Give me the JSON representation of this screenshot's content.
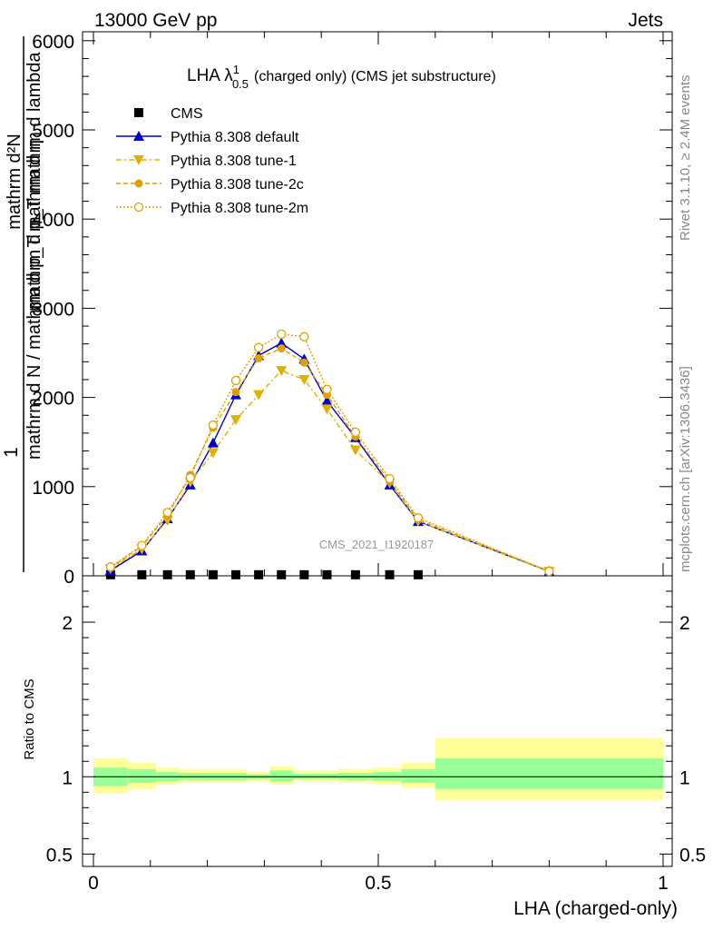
{
  "header": {
    "left": "13000 GeV pp",
    "right": "Jets"
  },
  "side_labels": {
    "rivet": "Rivet 3.1.10, ≥ 2.4M events",
    "mcplots": "mcplots.cern.ch [arXiv:1306.3436]"
  },
  "chart_data": {
    "type": "line",
    "title": "LHA λ^1_0.5 (charged only) (CMS jet substructure)",
    "title_main": "LHA λ",
    "title_sup": "1",
    "title_sub": "0.5",
    "title_rest": "(charged only) (CMS jet substructure)",
    "watermark": "CMS_2021_I1920187",
    "ylabel_left": "mathrm d N / mathrm d p_T mathrm d η",
    "ylabel_left_top": "1",
    "ylabel_main": "mathrm d^2N / mathrm d p_T mathrm d lambda",
    "ylabel_main_num": "mathrm d²N",
    "ylabel_main_den": "mathrm d p_T mathrm d lambda",
    "xlabel": "LHA (charged-only)",
    "ratio_ylabel": "Ratio to CMS",
    "xlim": [
      0,
      1
    ],
    "ylim": [
      0,
      6100
    ],
    "ratio_ylim": [
      0.42,
      2.3
    ],
    "x_ticks": [
      "0",
      "0.5",
      "1"
    ],
    "y_ticks": [
      "0",
      "1000",
      "2000",
      "3000",
      "4000",
      "5000",
      "6000"
    ],
    "ratio_ticks": [
      "0.5",
      "1",
      "2"
    ],
    "legend_position": "top-left",
    "x": [
      0.03,
      0.085,
      0.13,
      0.17,
      0.21,
      0.25,
      0.29,
      0.33,
      0.37,
      0.41,
      0.46,
      0.52,
      0.57,
      0.8
    ],
    "series": [
      {
        "name": "CMS",
        "color": "#000000",
        "marker": "square",
        "values": [
          12,
          12,
          12,
          12,
          12,
          12,
          12,
          12,
          12,
          12,
          12,
          12,
          12,
          null
        ]
      },
      {
        "name": "Pythia 8.308 default",
        "color": "#0000cc",
        "marker": "triangle-up",
        "dash": "",
        "values": [
          60,
          280,
          640,
          1020,
          1490,
          2030,
          2470,
          2610,
          2430,
          1960,
          1550,
          1020,
          610,
          50
        ]
      },
      {
        "name": "Pythia 8.308 tune-1",
        "color": "#e0b000",
        "marker": "triangle-down",
        "dash": "6,3,2,3",
        "values": [
          80,
          300,
          620,
          1050,
          1380,
          1750,
          2030,
          2300,
          2200,
          1870,
          1410,
          1040,
          610,
          50
        ]
      },
      {
        "name": "Pythia 8.308 tune-2c",
        "color": "#e0a000",
        "marker": "circle",
        "dash": "5,3",
        "values": [
          90,
          330,
          680,
          1130,
          1660,
          2060,
          2440,
          2550,
          2390,
          2030,
          1560,
          1060,
          630,
          50
        ]
      },
      {
        "name": "Pythia 8.308 tune-2m",
        "color": "#e0a000",
        "marker": "open-circle",
        "dash": "2,2",
        "values": [
          100,
          340,
          710,
          1100,
          1690,
          2190,
          2560,
          2710,
          2680,
          2090,
          1610,
          1090,
          650,
          50
        ]
      }
    ],
    "ratio_bands": {
      "x_edges": [
        0,
        0.06,
        0.11,
        0.15,
        0.19,
        0.23,
        0.27,
        0.31,
        0.35,
        0.39,
        0.43,
        0.49,
        0.54,
        0.6,
        1.0
      ],
      "yellow_lo": [
        0.89,
        0.92,
        0.95,
        0.96,
        0.96,
        0.96,
        0.97,
        0.95,
        0.97,
        0.97,
        0.96,
        0.95,
        0.93,
        0.85
      ],
      "yellow_hi": [
        1.12,
        1.09,
        1.06,
        1.05,
        1.05,
        1.05,
        1.03,
        1.07,
        1.04,
        1.04,
        1.05,
        1.06,
        1.09,
        1.25
      ],
      "green_lo": [
        0.94,
        0.96,
        0.97,
        0.98,
        0.98,
        0.98,
        0.985,
        0.97,
        0.985,
        0.985,
        0.98,
        0.975,
        0.96,
        0.92
      ],
      "green_hi": [
        1.06,
        1.05,
        1.03,
        1.025,
        1.025,
        1.025,
        1.015,
        1.04,
        1.02,
        1.02,
        1.025,
        1.03,
        1.05,
        1.12
      ]
    },
    "colors": {
      "band_inner": "#99ff99",
      "band_outer": "#ffff99"
    }
  }
}
